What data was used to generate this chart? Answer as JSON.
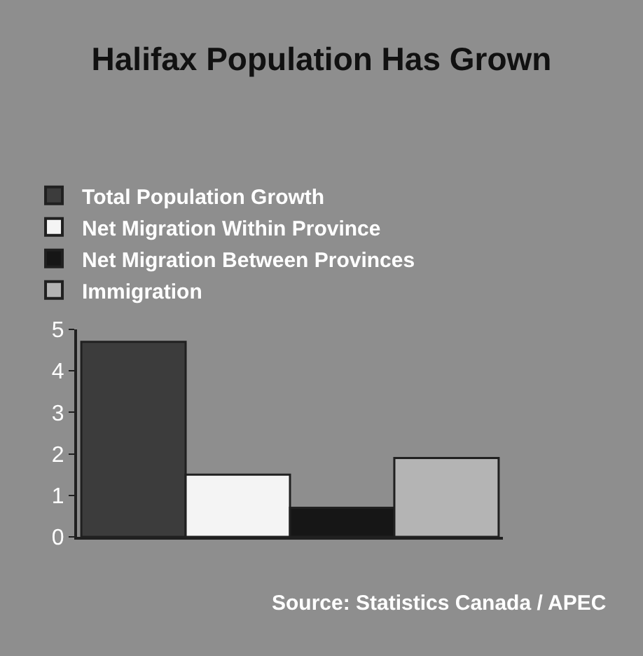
{
  "chart_data": {
    "type": "bar",
    "title": "Halifax Population Has Grown",
    "categories": [
      null
    ],
    "series": [
      {
        "name": "Total Population Growth",
        "color": "#3c3c3c",
        "values": [
          4.7
        ]
      },
      {
        "name": "Net Migration Within Province",
        "color": "#f4f4f4",
        "values": [
          1.5
        ]
      },
      {
        "name": "Net Migration Between Provinces",
        "color": "#161616",
        "values": [
          0.7
        ]
      },
      {
        "name": "Immigration",
        "color": "#b4b4b4",
        "values": [
          1.9
        ]
      }
    ],
    "ylim": [
      0,
      5
    ],
    "yticks": [
      0,
      1,
      2,
      3,
      4,
      5
    ],
    "grid": false,
    "legend": "top left",
    "annotations": [
      "Source: Statistics Canada / APEC"
    ]
  }
}
